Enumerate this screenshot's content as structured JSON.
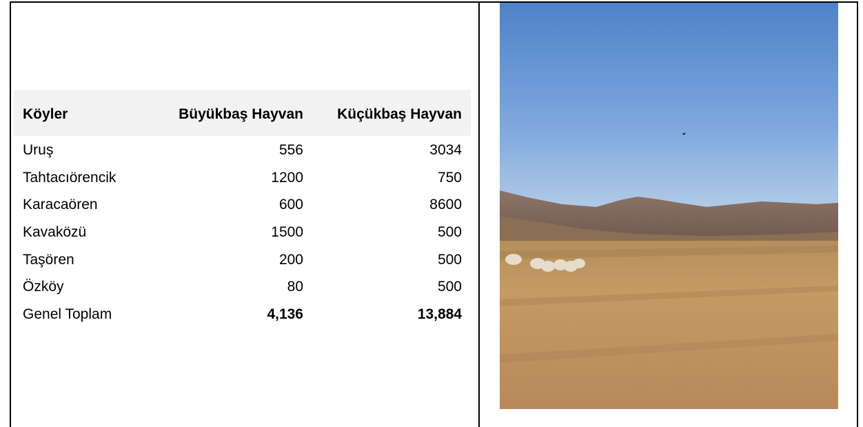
{
  "table": {
    "headers": [
      "Köyler",
      "Büyükbaş Hayvan",
      "Küçükbaş Hayvan"
    ],
    "rows": [
      [
        "Uruş",
        556,
        3034
      ],
      [
        "Tahtacıörencik",
        1200,
        750
      ],
      [
        "Karacaören",
        600,
        8600
      ],
      [
        "Kavaközü",
        1500,
        500
      ],
      [
        "Taşören",
        200,
        500
      ],
      [
        "Özköy",
        80,
        500
      ],
      [
        "Genel Toplam",
        "4,136",
        "13,884"
      ]
    ]
  }
}
